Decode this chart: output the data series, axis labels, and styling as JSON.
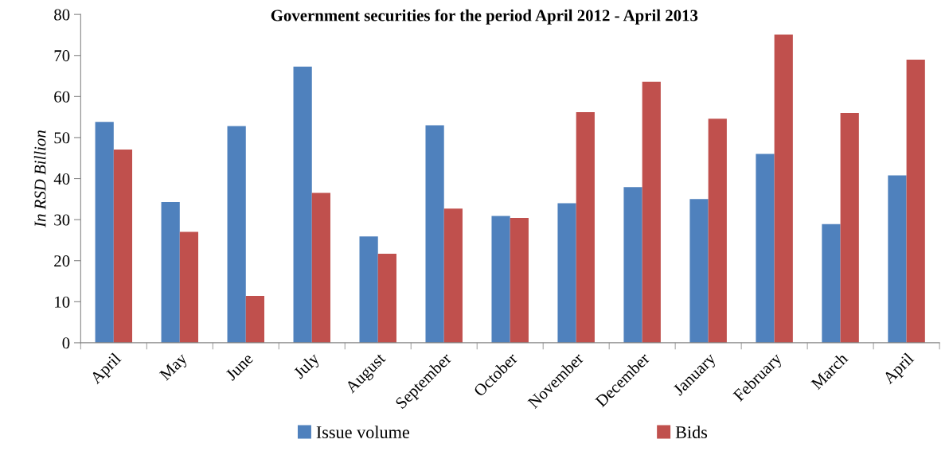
{
  "chart_data": {
    "type": "bar",
    "title": "Government securities for the period April 2012 - April 2013",
    "ylabel": "In RSD Billion",
    "categories": [
      "April",
      "May",
      "June",
      "July",
      "August",
      "September",
      "October",
      "November",
      "December",
      "January",
      "February",
      "March",
      "April"
    ],
    "series": [
      {
        "name": "Issue volume",
        "color": "#4f81bd",
        "values": [
          53.8,
          34.3,
          52.8,
          67.3,
          25.9,
          53.0,
          30.9,
          34.0,
          37.9,
          35.0,
          46.0,
          28.9,
          40.8
        ]
      },
      {
        "name": "Bids",
        "color": "#c0504d",
        "values": [
          47.1,
          27.0,
          11.4,
          36.5,
          21.7,
          32.7,
          30.4,
          56.2,
          63.6,
          54.6,
          75.1,
          56.0,
          69.0
        ]
      }
    ],
    "ylim": [
      0,
      80
    ],
    "yticks": [
      0,
      10,
      20,
      30,
      40,
      50,
      60,
      70,
      80
    ],
    "grid": false,
    "legend": "bottom"
  }
}
